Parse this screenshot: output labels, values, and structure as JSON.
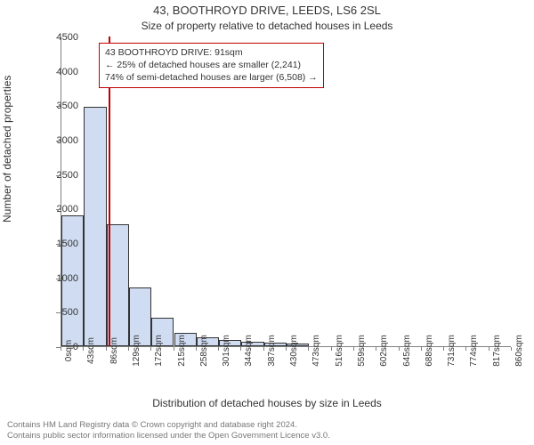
{
  "title": "43, BOOTHROYD DRIVE, LEEDS, LS6 2SL",
  "subtitle": "Size of property relative to detached houses in Leeds",
  "ylabel": "Number of detached properties",
  "xlabel": "Distribution of detached houses by size in Leeds",
  "footer_line1": "Contains HM Land Registry data © Crown copyright and database right 2024.",
  "footer_line2": "Contains public sector information licensed under the Open Government Licence v3.0.",
  "annotation": {
    "line1": "43 BOOTHROYD DRIVE: 91sqm",
    "line2": "← 25% of detached houses are smaller (2,241)",
    "line3": "74% of semi-detached houses are larger (6,508) →"
  },
  "chart": {
    "type": "histogram",
    "y": {
      "min": 0,
      "max": 4500,
      "ticks": [
        0,
        500,
        1000,
        1500,
        2000,
        2500,
        3000,
        3500,
        4000,
        4500
      ]
    },
    "x": {
      "ticks": [
        "0sqm",
        "43sqm",
        "86sqm",
        "129sqm",
        "172sqm",
        "215sqm",
        "258sqm",
        "301sqm",
        "344sqm",
        "387sqm",
        "430sqm",
        "473sqm",
        "516sqm",
        "559sqm",
        "602sqm",
        "645sqm",
        "688sqm",
        "731sqm",
        "774sqm",
        "817sqm",
        "860sqm"
      ],
      "max_value": 860,
      "bin_width": 43
    },
    "bars": [
      1900,
      3480,
      1770,
      850,
      420,
      200,
      130,
      90,
      60,
      50,
      40,
      0,
      0,
      0,
      0,
      0,
      0,
      0,
      0,
      0
    ],
    "bar_fill": "#cfdcf2",
    "bar_border": "#333333",
    "marker_value": 91,
    "marker_color": "#c00000",
    "background_color": "#ffffff",
    "axis_color": "#808080",
    "text_color": "#333333",
    "title_fontsize": 13,
    "subtitle_fontsize": 12,
    "label_fontsize": 12,
    "tick_fontsize": 11,
    "xtick_fontsize": 10,
    "annotation_fontsize": 10.5,
    "footer_fontsize": 9.5
  }
}
